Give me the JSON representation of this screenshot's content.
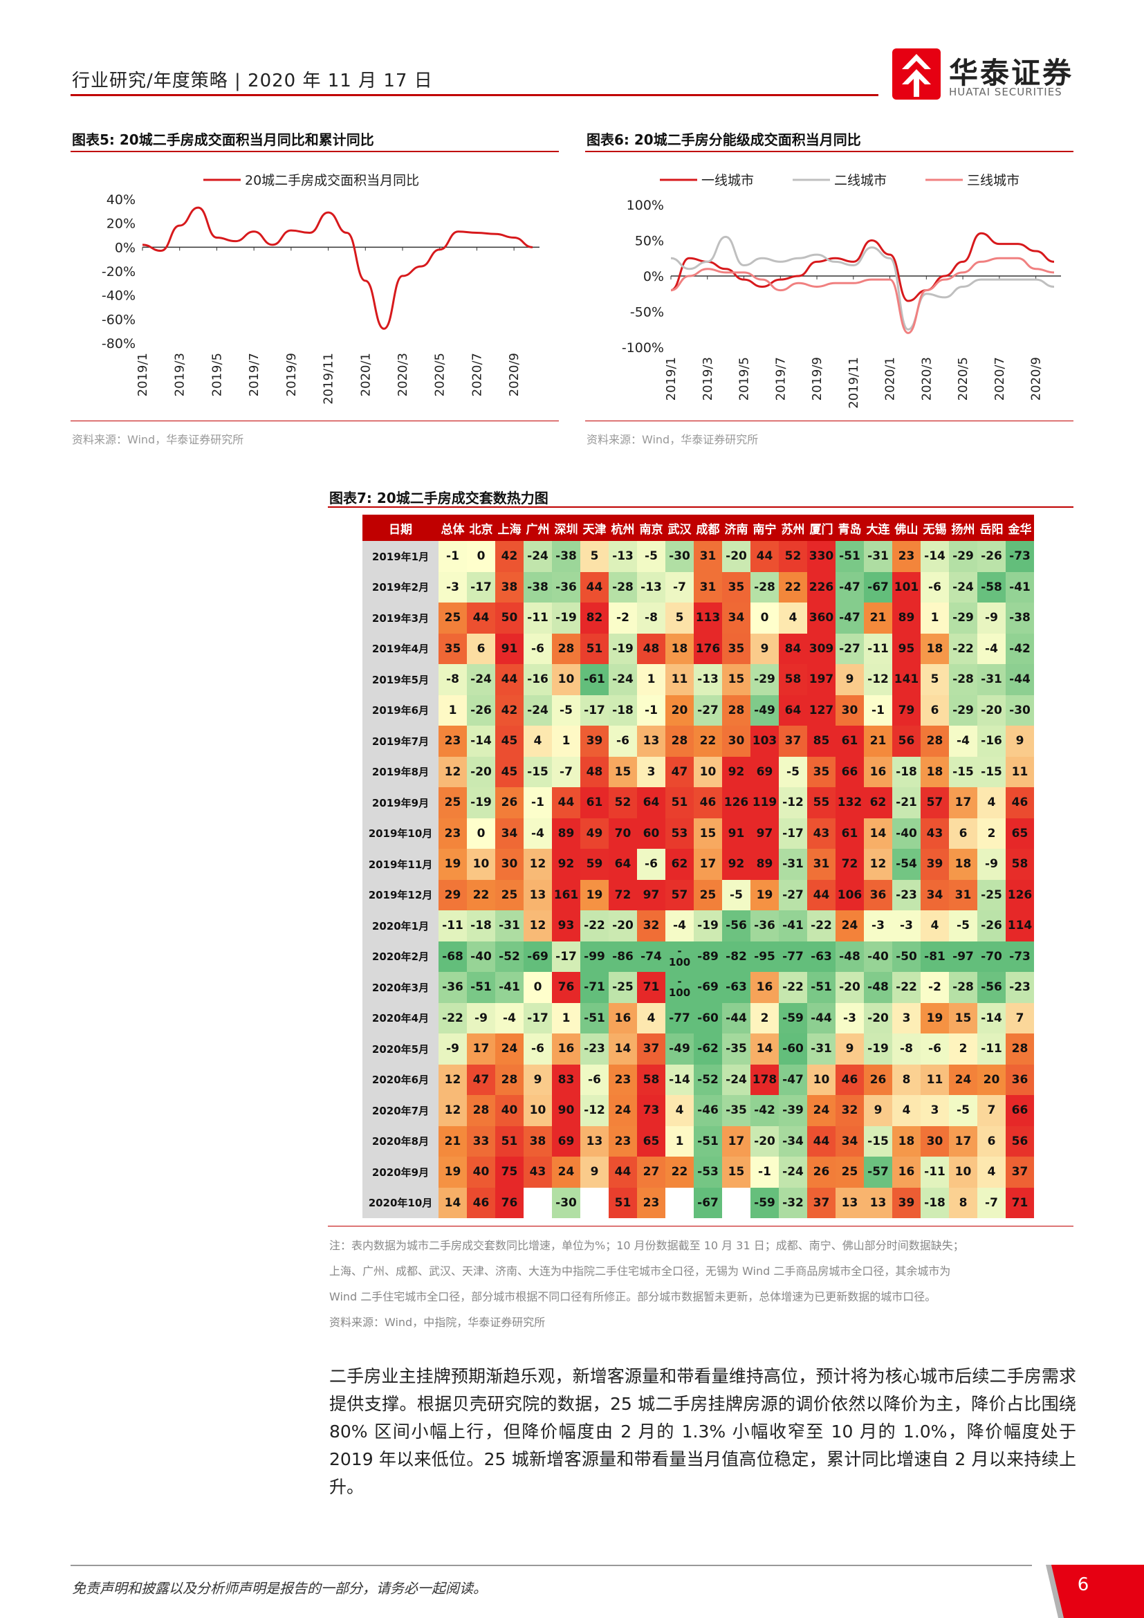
{
  "header": {
    "text": "行业研究/年度策略 | 2020 年 11 月 17 日",
    "logo_cn": "华泰证券",
    "logo_en": "HUATAI SECURITIES"
  },
  "fig5": {
    "title": "图表5:   20城二手房成交面积当月同比和累计同比",
    "source": "资料来源：Wind，华泰证券研究所"
  },
  "fig6": {
    "title": "图表6:   20城二手房分能级成交面积当月同比",
    "source": "资料来源：Wind，华泰证券研究所"
  },
  "fig7": {
    "title": "图表7:   20城二手房成交套数热力图",
    "note_lines": [
      "注：表内数据为城市二手房成交套数同比增速，单位为%；10 月份数据截至 10 月 31 日；成都、南宁、佛山部分时间数据缺失；",
      "上海、广州、成都、武汉、天津、济南、大连为中指院二手住宅城市全口径，无锡为 Wind 二手商品房城市全口径，其余城市为",
      "Wind 二手住宅城市全口径，部分城市根据不同口径有所修正。部分城市数据暂未更新，总体增速为已更新数据的城市口径。"
    ],
    "source": "资料来源：Wind，中指院，华泰证券研究所"
  },
  "paragraph": "二手房业主挂牌预期渐趋乐观，新增客源量和带看量维持高位，预计将为核心城市后续二手房需求提供支撑。根据贝壳研究院的数据，25 城二手房挂牌房源的调价依然以降价为主，降价占比围绕 80% 区间小幅上行，但降价幅度由 2 月的 1.3% 小幅收窄至 10 月的 1.0%，降价幅度处于 2019 年以来低位。25 城新增客源量和带看量当月值高位稳定，累计同比增速自 2 月以来持续上升。",
  "footer": {
    "text": "免责声明和披露以及分析师声明是报告的一部分，请务必一起阅读。",
    "page": "6"
  },
  "chart_data": [
    {
      "type": "line",
      "x": [
        "2019/1",
        "2019/2",
        "2019/3",
        "2019/4",
        "2019/5",
        "2019/6",
        "2019/7",
        "2019/8",
        "2019/9",
        "2019/10",
        "2019/11",
        "2019/12",
        "2020/1",
        "2020/2",
        "2020/3",
        "2020/4",
        "2020/5",
        "2020/6",
        "2020/7",
        "2020/8",
        "2020/9",
        "2020/10"
      ],
      "xticks": [
        "2019/1",
        "2019/3",
        "2019/5",
        "2019/7",
        "2019/9",
        "2019/11",
        "2020/1",
        "2020/3",
        "2020/5",
        "2020/7",
        "2020/9"
      ],
      "series": [
        {
          "name": "20城二手房成交面积当月同比",
          "color": "#d7191c",
          "values": [
            2,
            -3,
            18,
            33,
            8,
            5,
            13,
            2,
            14,
            12,
            29,
            12,
            -28,
            -68,
            -24,
            -16,
            -2,
            13,
            12,
            11,
            8,
            0
          ]
        }
      ],
      "ylim": [
        -80,
        40
      ],
      "yticks": [
        "40%",
        "20%",
        "0%",
        "-20%",
        "-40%",
        "-60%",
        "-80%"
      ],
      "legend": "top"
    },
    {
      "type": "line",
      "x": [
        "2019/1",
        "2019/2",
        "2019/3",
        "2019/4",
        "2019/5",
        "2019/6",
        "2019/7",
        "2019/8",
        "2019/9",
        "2019/10",
        "2019/11",
        "2019/12",
        "2020/1",
        "2020/2",
        "2020/3",
        "2020/4",
        "2020/5",
        "2020/6",
        "2020/7",
        "2020/8",
        "2020/9",
        "2020/10"
      ],
      "xticks": [
        "2019/1",
        "2019/3",
        "2019/5",
        "2019/7",
        "2019/9",
        "2019/11",
        "2020/1",
        "2020/3",
        "2020/5",
        "2020/7",
        "2020/9"
      ],
      "series": [
        {
          "name": "一线城市",
          "color": "#d7191c",
          "values": [
            -20,
            25,
            20,
            10,
            -5,
            -15,
            -5,
            0,
            20,
            25,
            20,
            50,
            30,
            -35,
            -20,
            0,
            20,
            60,
            45,
            45,
            35,
            20
          ]
        },
        {
          "name": "二线城市",
          "color": "#bfbfbf",
          "values": [
            25,
            10,
            20,
            55,
            15,
            25,
            20,
            25,
            30,
            20,
            15,
            40,
            25,
            -75,
            -25,
            -30,
            -15,
            -5,
            -5,
            -5,
            -5,
            -15
          ]
        },
        {
          "name": "三线城市",
          "color": "#f08080",
          "values": [
            -20,
            0,
            10,
            5,
            5,
            -5,
            -20,
            -10,
            -15,
            -10,
            -10,
            -5,
            -5,
            -80,
            -20,
            -5,
            5,
            20,
            25,
            25,
            10,
            5
          ]
        }
      ],
      "ylim": [
        -100,
        100
      ],
      "yticks": [
        "100%",
        "50%",
        "0%",
        "-50%",
        "-100%"
      ],
      "legend": "top"
    },
    {
      "type": "heatmap",
      "title": "20城二手房成交套数热力图",
      "row_header": "日期",
      "columns": [
        "总体",
        "北京",
        "上海",
        "广州",
        "深圳",
        "天津",
        "杭州",
        "南京",
        "武汉",
        "成都",
        "济南",
        "南宁",
        "苏州",
        "厦门",
        "青岛",
        "大连",
        "佛山",
        "无锡",
        "扬州",
        "岳阳",
        "金华"
      ],
      "rows": [
        {
          "date": "2019年1月",
          "values": [
            "-1",
            "0",
            "42",
            "-24",
            "-38",
            "5",
            "-13",
            "-5",
            "-30",
            "31",
            "-20",
            "44",
            "52",
            "330",
            "-51",
            "-31",
            "23",
            "-14",
            "-29",
            "-26",
            "-73"
          ]
        },
        {
          "date": "2019年2月",
          "values": [
            "-3",
            "-17",
            "38",
            "-38",
            "-36",
            "44",
            "-28",
            "-13",
            "-7",
            "31",
            "35",
            "-28",
            "22",
            "226",
            "-47",
            "-67",
            "101",
            "-6",
            "-24",
            "-58",
            "-41"
          ]
        },
        {
          "date": "2019年3月",
          "values": [
            "25",
            "44",
            "50",
            "-11",
            "-19",
            "82",
            "-2",
            "-8",
            "5",
            "113",
            "34",
            "0",
            "4",
            "360",
            "-47",
            "21",
            "89",
            "1",
            "-29",
            "-9",
            "-38"
          ]
        },
        {
          "date": "2019年4月",
          "values": [
            "35",
            "6",
            "91",
            "-6",
            "28",
            "51",
            "-19",
            "48",
            "18",
            "176",
            "35",
            "9",
            "84",
            "309",
            "-27",
            "-11",
            "95",
            "18",
            "-22",
            "-4",
            "-42"
          ]
        },
        {
          "date": "2019年5月",
          "values": [
            "-8",
            "-24",
            "44",
            "-16",
            "10",
            "-61",
            "-24",
            "1",
            "11",
            "-13",
            "15",
            "-29",
            "58",
            "197",
            "9",
            "-12",
            "141",
            "5",
            "-28",
            "-31",
            "-44"
          ]
        },
        {
          "date": "2019年6月",
          "values": [
            "1",
            "-26",
            "42",
            "-24",
            "-5",
            "-17",
            "-18",
            "-1",
            "20",
            "-27",
            "28",
            "-49",
            "64",
            "127",
            "30",
            "-1",
            "79",
            "6",
            "-29",
            "-20",
            "-30"
          ]
        },
        {
          "date": "2019年7月",
          "values": [
            "23",
            "-14",
            "45",
            "4",
            "1",
            "39",
            "-6",
            "13",
            "28",
            "22",
            "30",
            "103",
            "37",
            "85",
            "61",
            "21",
            "56",
            "28",
            "-4",
            "-16",
            "9"
          ]
        },
        {
          "date": "2019年8月",
          "values": [
            "12",
            "-20",
            "45",
            "-15",
            "-7",
            "48",
            "15",
            "3",
            "47",
            "10",
            "92",
            "69",
            "-5",
            "35",
            "66",
            "16",
            "-18",
            "18",
            "-15",
            "-15",
            "11"
          ]
        },
        {
          "date": "2019年9月",
          "values": [
            "25",
            "-19",
            "26",
            "-1",
            "44",
            "61",
            "52",
            "64",
            "51",
            "46",
            "126",
            "119",
            "-12",
            "55",
            "132",
            "62",
            "-21",
            "57",
            "17",
            "4",
            "46"
          ]
        },
        {
          "date": "2019年10月",
          "values": [
            "23",
            "0",
            "34",
            "-4",
            "89",
            "49",
            "70",
            "60",
            "53",
            "15",
            "91",
            "97",
            "-17",
            "43",
            "61",
            "14",
            "-40",
            "43",
            "6",
            "2",
            "65"
          ]
        },
        {
          "date": "2019年11月",
          "values": [
            "19",
            "10",
            "30",
            "12",
            "92",
            "59",
            "64",
            "-6",
            "62",
            "17",
            "92",
            "89",
            "-31",
            "31",
            "72",
            "12",
            "-54",
            "39",
            "18",
            "-9",
            "58"
          ]
        },
        {
          "date": "2019年12月",
          "values": [
            "29",
            "22",
            "25",
            "13",
            "161",
            "19",
            "72",
            "97",
            "57",
            "25",
            "-5",
            "19",
            "-27",
            "44",
            "106",
            "36",
            "-23",
            "34",
            "31",
            "-25",
            "126"
          ]
        },
        {
          "date": "2020年1月",
          "values": [
            "-11",
            "-18",
            "-31",
            "12",
            "93",
            "-22",
            "-20",
            "32",
            "-4",
            "-19",
            "-56",
            "-36",
            "-41",
            "-22",
            "24",
            "-3",
            "-3",
            "4",
            "-5",
            "-26",
            "114"
          ]
        },
        {
          "date": "2020年2月",
          "values": [
            "-68",
            "-40",
            "-52",
            "-69",
            "-17",
            "-99",
            "-86",
            "-74",
            "-100",
            "-89",
            "-82",
            "-95",
            "-77",
            "-63",
            "-48",
            "-40",
            "-50",
            "-81",
            "-97",
            "-70",
            "-73"
          ]
        },
        {
          "date": "2020年3月",
          "values": [
            "-36",
            "-51",
            "-41",
            "0",
            "76",
            "-71",
            "-25",
            "71",
            "-100",
            "-69",
            "-63",
            "16",
            "-22",
            "-51",
            "-20",
            "-48",
            "-22",
            "-2",
            "-28",
            "-56",
            "-23"
          ]
        },
        {
          "date": "2020年4月",
          "values": [
            "-22",
            "-9",
            "-4",
            "-17",
            "1",
            "-51",
            "16",
            "4",
            "-77",
            "-60",
            "-44",
            "2",
            "-59",
            "-44",
            "-3",
            "-20",
            "3",
            "19",
            "15",
            "-14",
            "7"
          ]
        },
        {
          "date": "2020年5月",
          "values": [
            "-9",
            "17",
            "24",
            "-6",
            "16",
            "-23",
            "14",
            "37",
            "-49",
            "-62",
            "-35",
            "14",
            "-60",
            "-31",
            "9",
            "-19",
            "-8",
            "-6",
            "2",
            "-11",
            "28"
          ]
        },
        {
          "date": "2020年6月",
          "values": [
            "12",
            "47",
            "28",
            "9",
            "83",
            "-6",
            "23",
            "58",
            "-14",
            "-52",
            "-24",
            "178",
            "-47",
            "10",
            "46",
            "26",
            "8",
            "11",
            "24",
            "20",
            "36"
          ]
        },
        {
          "date": "2020年7月",
          "values": [
            "12",
            "28",
            "40",
            "10",
            "90",
            "-12",
            "24",
            "73",
            "4",
            "-46",
            "-35",
            "-42",
            "-39",
            "24",
            "32",
            "9",
            "4",
            "3",
            "-5",
            "7",
            "66"
          ]
        },
        {
          "date": "2020年8月",
          "values": [
            "21",
            "33",
            "51",
            "38",
            "69",
            "13",
            "23",
            "65",
            "1",
            "-51",
            "17",
            "-20",
            "-34",
            "44",
            "34",
            "-15",
            "18",
            "30",
            "17",
            "6",
            "56"
          ]
        },
        {
          "date": "2020年9月",
          "values": [
            "19",
            "40",
            "75",
            "43",
            "24",
            "9",
            "44",
            "27",
            "22",
            "-53",
            "15",
            "-1",
            "-24",
            "26",
            "25",
            "-57",
            "16",
            "-11",
            "10",
            "4",
            "37"
          ]
        },
        {
          "date": "2020年10月",
          "values": [
            "14",
            "46",
            "76",
            "",
            "-30",
            "",
            "51",
            "23",
            "",
            "-67",
            "",
            "-59",
            "-32",
            "37",
            "13",
            "13",
            "39",
            "-18",
            "8",
            "-7",
            "71"
          ]
        }
      ]
    }
  ]
}
